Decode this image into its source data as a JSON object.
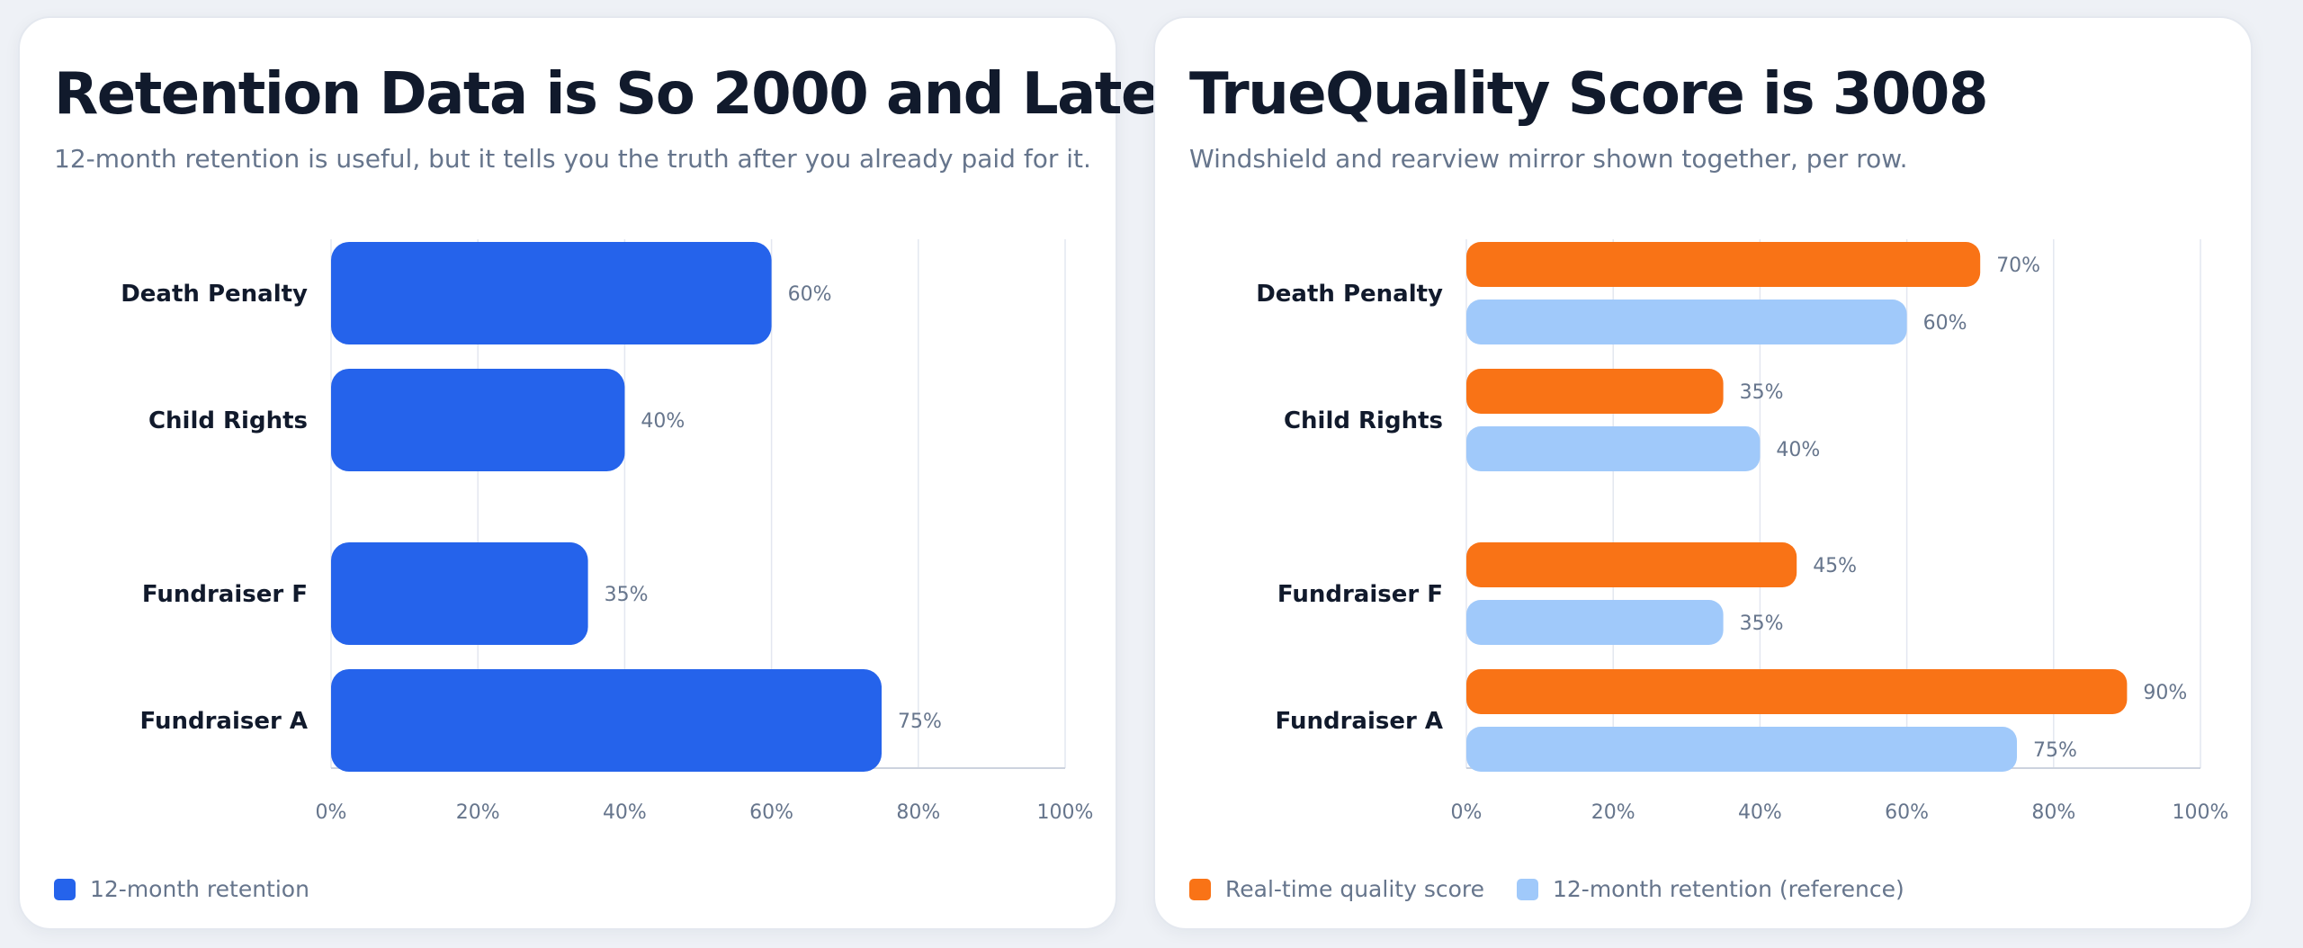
{
  "colors": {
    "blue": "#2563eb",
    "orange": "#f97316",
    "light_blue": "#a0c9fa",
    "grid": "#e3e7f0",
    "axis": "#cdd3de"
  },
  "chart_data": [
    {
      "type": "bar",
      "orientation": "horizontal",
      "title": "Retention Data is So 2000 and Late",
      "subtitle": "12-month retention is useful, but it tells you the truth after you already paid for it.",
      "categories": [
        "Death Penalty",
        "Child Rights",
        "Fundraiser F",
        "Fundraiser A"
      ],
      "series": [
        {
          "name": "12-month retention",
          "color": "#2563eb",
          "values": [
            60,
            40,
            35,
            75
          ],
          "value_labels": [
            "60%",
            "40%",
            "35%",
            "75%"
          ]
        }
      ],
      "xlim": [
        0,
        100
      ],
      "x_ticks": [
        "0%",
        "20%",
        "40%",
        "60%",
        "80%",
        "100%"
      ],
      "grid": true,
      "legend": "bottom-left"
    },
    {
      "type": "bar",
      "orientation": "horizontal",
      "title": "TrueQuality Score is 3008",
      "subtitle": "Windshield and rearview mirror shown together, per row.",
      "categories": [
        "Death Penalty",
        "Child Rights",
        "Fundraiser F",
        "Fundraiser A"
      ],
      "series": [
        {
          "name": "Real-time quality score",
          "color": "#f97316",
          "values": [
            70,
            35,
            45,
            90
          ],
          "value_labels": [
            "70%",
            "35%",
            "45%",
            "90%"
          ]
        },
        {
          "name": "12-month retention (reference)",
          "color": "#a0c9fa",
          "values": [
            60,
            40,
            35,
            75
          ],
          "value_labels": [
            "60%",
            "40%",
            "35%",
            "75%"
          ]
        }
      ],
      "xlim": [
        0,
        100
      ],
      "x_ticks": [
        "0%",
        "20%",
        "40%",
        "60%",
        "80%",
        "100%"
      ],
      "grid": true,
      "legend": "bottom-left"
    }
  ]
}
